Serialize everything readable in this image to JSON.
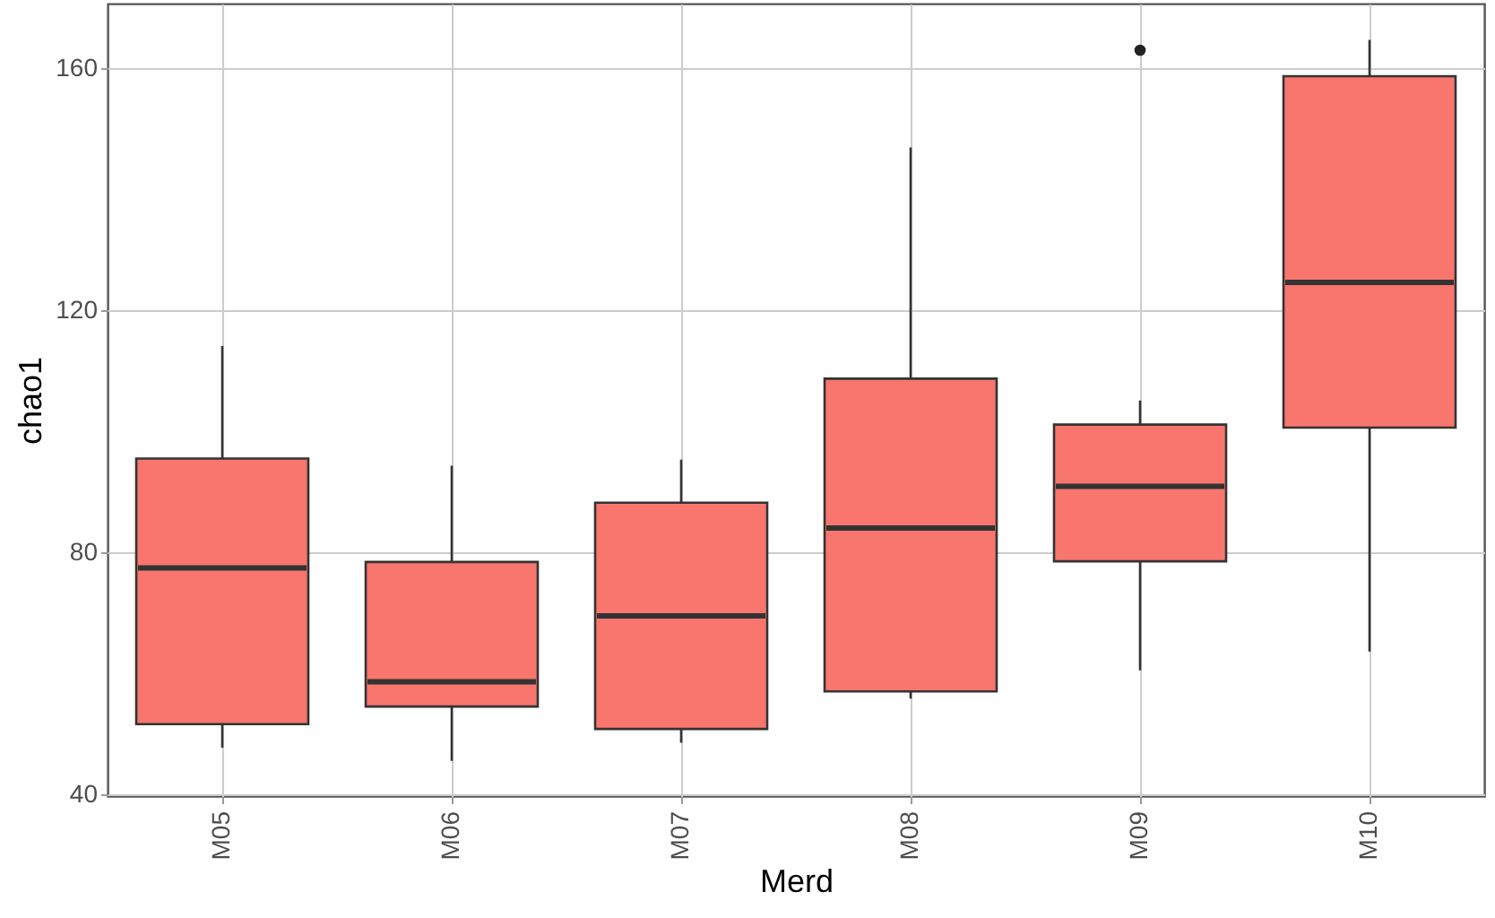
{
  "chart_data": {
    "type": "box",
    "xlabel": "Merd",
    "ylabel": "chao1",
    "categories": [
      "M05",
      "M06",
      "M07",
      "M08",
      "M09",
      "M10"
    ],
    "boxes": [
      {
        "low": 47.7,
        "q1": 51.6,
        "median": 77.4,
        "q3": 95.5,
        "high": 114.1
      },
      {
        "low": 45.5,
        "q1": 54.5,
        "median": 58.6,
        "q3": 78.4,
        "high": 94.3
      },
      {
        "low": 48.5,
        "q1": 50.8,
        "median": 69.5,
        "q3": 88.2,
        "high": 95.3
      },
      {
        "low": 55.8,
        "q1": 57.0,
        "median": 84.0,
        "q3": 108.7,
        "high": 146.9
      },
      {
        "low": 60.5,
        "q1": 78.5,
        "median": 90.9,
        "q3": 101.1,
        "high": 105.1,
        "outliers": [
          163.0
        ]
      },
      {
        "low": 63.6,
        "q1": 100.6,
        "median": 124.6,
        "q3": 158.7,
        "high": 164.7
      }
    ],
    "color": "#f8766d",
    "ylim": [
      39.7,
      170.7
    ],
    "yticks": [
      40,
      80,
      120,
      160
    ],
    "grid": true
  }
}
